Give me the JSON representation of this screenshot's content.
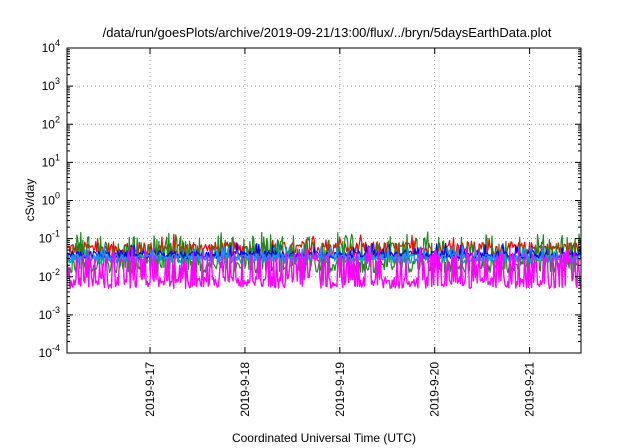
{
  "chart_data": {
    "type": "line",
    "title": "/data/run/goesPlots/archive/2019-09-21/13:00/flux/../bryn/5daysEarthData.plot",
    "xlabel": "Coordinated Universal Time (UTC)",
    "ylabel": "cSv/day",
    "yscale": "log",
    "ylim": [
      0.0001,
      10000
    ],
    "yticks": [
      {
        "mant": "10",
        "exp": "-4",
        "value": 0.0001
      },
      {
        "mant": "10",
        "exp": "-3",
        "value": 0.001
      },
      {
        "mant": "10",
        "exp": "-2",
        "value": 0.01
      },
      {
        "mant": "10",
        "exp": "-1",
        "value": 0.1
      },
      {
        "mant": "10",
        "exp": "0",
        "value": 1
      },
      {
        "mant": "10",
        "exp": "1",
        "value": 10
      },
      {
        "mant": "10",
        "exp": "2",
        "value": 100
      },
      {
        "mant": "10",
        "exp": "3",
        "value": 1000
      },
      {
        "mant": "10",
        "exp": "4",
        "value": 10000
      }
    ],
    "xlim": [
      "2019-09-16T03:00",
      "2019-09-21T13:00"
    ],
    "xticks": [
      {
        "label": "2019-9-17",
        "value": "2019-09-17T00:00"
      },
      {
        "label": "2019-9-18",
        "value": "2019-09-18T00:00"
      },
      {
        "label": "2019-9-19",
        "value": "2019-09-19T00:00"
      },
      {
        "label": "2019-9-20",
        "value": "2019-09-20T00:00"
      },
      {
        "label": "2019-9-21",
        "value": "2019-09-21T00:00"
      }
    ],
    "grid": true,
    "series": [
      {
        "color": "#ff0000",
        "base": 0.055,
        "spread": 0.35,
        "bursty": false
      },
      {
        "color": "#1a8a1a",
        "base": 0.018,
        "spread": 0.3,
        "bursty": true
      },
      {
        "color": "#00a0b0",
        "base": 0.03,
        "spread": 0.25,
        "bursty": false
      },
      {
        "color": "#0000ff",
        "base": 0.038,
        "spread": 0.2,
        "bursty": false
      },
      {
        "color": "#1e90ff",
        "base": 0.032,
        "spread": 0.18,
        "bursty": false
      },
      {
        "color": "#ff00ff",
        "base": 0.007,
        "spread": 0.3,
        "bursty": true
      }
    ]
  }
}
